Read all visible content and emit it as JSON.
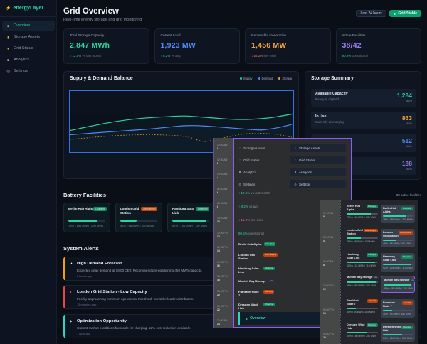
{
  "colors": {
    "accent_teal": "#2dd4a0",
    "accent_blue": "#4f8af8",
    "accent_orange": "#f2a33c",
    "accent_purple": "#9a7df5",
    "accent_red": "#f87171",
    "highlight_purple": "#8b5cf6",
    "plot_border_blue": "#3b82f6"
  },
  "sidebar": {
    "logo_icon": "lightning-bolt",
    "logo_text": "energyLayer",
    "items": [
      {
        "label": "Overview",
        "active": true
      },
      {
        "label": "Storage Assets",
        "active": false
      },
      {
        "label": "Grid Status",
        "active": false
      },
      {
        "label": "Analytics",
        "active": false
      },
      {
        "label": "Settings",
        "active": false
      }
    ]
  },
  "header": {
    "title": "Grid Overview",
    "subtitle": "Real-time energy storage and grid monitoring",
    "range_button": "Last 24 hours",
    "status_button": "Grid Stable"
  },
  "stats": [
    {
      "label": "Total Storage Capacity",
      "value": "2,847 MWh",
      "delta": "↑ 12.5%",
      "note": "vs last month",
      "value_color": "green",
      "delta_color": "green"
    },
    {
      "label": "Current Load",
      "value": "1,923 MW",
      "delta": "↑ 8.2%",
      "note": "vs avg",
      "value_color": "blue",
      "delta_color": "green"
    },
    {
      "label": "Renewable Generation",
      "value": "1,456 MW",
      "delta": "↓ 15.2%",
      "note": "low wind",
      "value_color": "orange",
      "delta_color": "red"
    },
    {
      "label": "Active Facilities",
      "value": "38/42",
      "delta": "90.5%",
      "note": "operational",
      "value_color": "purple",
      "delta_color": "green"
    }
  ],
  "chart": {
    "title": "Supply & Demand Balance",
    "legend": [
      {
        "label": "Supply",
        "color": "#2ed3a0"
      },
      {
        "label": "Demand",
        "color": "#4f8af8"
      },
      {
        "label": "Storage",
        "color": "#c4881c"
      }
    ]
  },
  "chart_data": {
    "type": "line",
    "title": "Supply & Demand Balance",
    "x_hours": [
      0,
      2,
      4,
      6,
      8,
      10,
      12,
      14,
      16,
      18,
      20,
      22,
      24
    ],
    "series": [
      {
        "name": "Supply",
        "style": "solid",
        "color": "#2ed3a0",
        "values_mw": [
          1500,
          1580,
          1680,
          1760,
          1820,
          1850,
          1840,
          1820,
          1800,
          1810,
          1830,
          1880,
          1950
        ]
      },
      {
        "name": "Demand",
        "style": "solid",
        "color": "#4f8af8",
        "values_mw": [
          1350,
          1380,
          1430,
          1490,
          1550,
          1590,
          1580,
          1560,
          1520,
          1500,
          1540,
          1610,
          1660
        ]
      },
      {
        "name": "Storage",
        "style": "dotted",
        "color": "#c4881c",
        "values_mw": [
          1180,
          1230,
          1270,
          1280,
          1250,
          1150,
          1100,
          1160,
          1290,
          1330,
          1310,
          1280,
          1210
        ]
      }
    ],
    "legend_position": "top-right",
    "grid": false,
    "axes_visible": false
  },
  "storage_summary": {
    "title": "Storage Summary",
    "rows": [
      {
        "title": "Available Capacity",
        "sub": "Ready to dispatch",
        "value": "1,284",
        "unit": "MWh",
        "value_color": "green"
      },
      {
        "title": "In Use",
        "sub": "Currently discharging",
        "value": "863",
        "unit": "MWh",
        "value_color": "orange"
      },
      {
        "title": "",
        "sub": "",
        "value": "512",
        "unit": "MWh",
        "value_color": "blue"
      },
      {
        "title": "",
        "sub": "",
        "value": "188",
        "unit": "MWh",
        "value_color": "purple"
      }
    ]
  },
  "battery": {
    "title": "Battery Facilities",
    "count_label": "38 active facilities",
    "cards": [
      {
        "name": "Berlin Hub Alpha",
        "status": "Charging",
        "status_type": "green",
        "percent": 78,
        "detail": "78% • 156 MWh / 200 MWh"
      },
      {
        "name": "London Grid Station",
        "status": "Discharging",
        "status_type": "orange",
        "percent": 45,
        "detail": "45% • 68 MWh / 150 MWh"
      },
      {
        "name": "Hamburg Solar Link",
        "status": "Charging",
        "status_type": "green",
        "percent": 92,
        "detail": "92% • 101 MWh / 110 MWh"
      }
    ]
  },
  "alerts": {
    "title": "System Alerts",
    "items": [
      {
        "severity": "warning",
        "icon": "warning-triangle",
        "title": "High Demand Forecast",
        "body": "Expected peak demand at 18:00 CET. Recommend pre-positioning 450 MWh capacity.",
        "time": "2 hours ago"
      },
      {
        "severity": "critical",
        "icon": "alert-dot",
        "title": "London Grid Station - Low Capacity",
        "body": "Facility approaching minimum operational threshold. Consider load redistribution.",
        "time": "15 minutes ago"
      },
      {
        "severity": "info",
        "icon": "info-diamond",
        "title": "Optimization Opportunity",
        "body": "Current market conditions favorable for charging. 12% cost reduction available.",
        "time": "1 hour ago"
      }
    ]
  },
  "overlay_a": {
    "ticks": [
      {
        "t1": "12:00 AM",
        "t2": "0"
      },
      {
        "t1": "02:00 AM",
        "t2": "2"
      },
      {
        "t1": "04:00 AM",
        "t2": "4"
      },
      {
        "t1": "06:00 AM",
        "t2": "6"
      },
      {
        "t1": "08:00 AM",
        "t2": "8"
      },
      {
        "t1": "10:00 AM",
        "t2": "10"
      },
      {
        "t1": "12:00 PM",
        "t2": "12"
      },
      {
        "t1": "02:00 PM",
        "t2": "14"
      },
      {
        "t1": "04:00 PM",
        "t2": "16"
      },
      {
        "t1": "06:00 PM",
        "t2": "18"
      },
      {
        "t1": "08:00 PM",
        "t2": "20"
      },
      {
        "t1": "10:00 PM",
        "t2": "22"
      },
      {
        "t1": "12:00 AM",
        "t2": "24"
      }
    ],
    "menu_items": [
      {
        "icon": "chevron",
        "label": "Storage Assets"
      },
      {
        "icon": "chevron",
        "label": "Grid Status"
      },
      {
        "icon": "square",
        "label": "Analytics"
      },
      {
        "icon": "gear",
        "label": "Settings"
      }
    ],
    "metrics": [
      {
        "delta": "↑ 12.5%",
        "note": "vs last month",
        "color": "green"
      },
      {
        "delta": "↑ 8.2%",
        "note": "vs avg",
        "color": "green"
      },
      {
        "delta": "↓ 15.2%",
        "note": "low wind",
        "color": "red"
      },
      {
        "delta": "90.5%",
        "note": "operational",
        "color": "green"
      }
    ],
    "facilities": [
      {
        "name": "Berlin Hub Alpha",
        "status": "Charging",
        "status_type": "green"
      },
      {
        "name": "London Grid Station",
        "status": "Discharging",
        "status_type": "orange"
      },
      {
        "name": "Hamburg Solar Link",
        "status": "Charging",
        "status_type": "green"
      },
      {
        "name": "Munich Bay Storage",
        "status": "Idle",
        "status_type": "idle"
      },
      {
        "name": "Frankfurt Node 7",
        "status": "Standby",
        "status_type": "orange"
      },
      {
        "name": "Dresden Wind Hub",
        "status": "Charging",
        "status_type": "green"
      }
    ],
    "overview_button": "Overview"
  },
  "overlay_b": {
    "ticks": [
      {
        "t1": "12:00 AM",
        "t2": "0"
      },
      {
        "t1": "04:00 AM",
        "t2": "4"
      },
      {
        "t1": "08:00 AM",
        "t2": "8"
      },
      {
        "t1": "12:00 PM",
        "t2": "12"
      },
      {
        "t1": "04:00 PM",
        "t2": "16"
      },
      {
        "t1": "08:00 PM",
        "t2": "20"
      }
    ],
    "facilities": [
      {
        "name": "Berlin Hub Alpha",
        "status": "Charging",
        "status_type": "green",
        "percent": 78,
        "detail": "78% • 156 MWh / 200 MWh",
        "highlight": false
      },
      {
        "name": "London Grid Station",
        "status": "Discharging",
        "status_type": "orange",
        "percent": 45,
        "detail": "45% • 68 MWh / 150 MWh",
        "highlight": false
      },
      {
        "name": "Hamburg Solar Link",
        "status": "Charging",
        "status_type": "green",
        "percent": 92,
        "detail": "92% • 101 MWh / 110 MWh",
        "highlight": false
      },
      {
        "name": "Munich Bay Storage",
        "status": "Idle",
        "status_type": "idle",
        "percent": 95,
        "detail": "95% • 285 MWh / 300 MWh",
        "highlight": true
      },
      {
        "name": "Frankfurt Node 7",
        "status": "Standby",
        "status_type": "orange",
        "percent": 30,
        "detail": "30% • 54 MWh / 180 MWh",
        "highlight": false
      },
      {
        "name": "Dresden Wind Hub",
        "status": "Charging",
        "status_type": "green",
        "percent": 64,
        "detail": "64% • 160 MWh / 250 MWh",
        "highlight": false
      }
    ]
  }
}
